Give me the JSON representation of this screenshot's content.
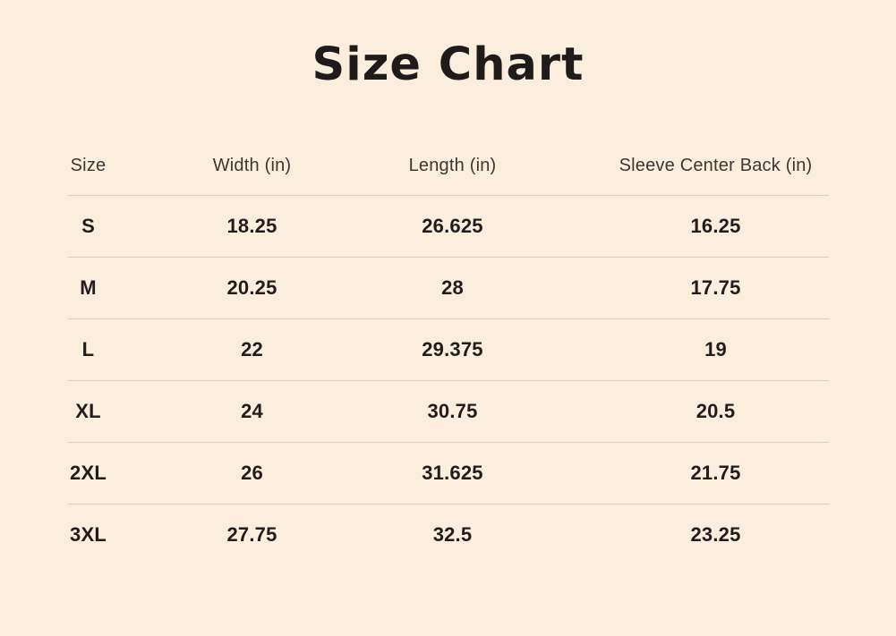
{
  "page": {
    "background_color": "#fceedd",
    "divider_color": "#d8d0c2",
    "title_color": "#1f1b1b",
    "header_text_color": "#3c3733",
    "data_text_color": "#211d1d"
  },
  "chart_data": {
    "type": "table",
    "title": "Size Chart",
    "columns": [
      "Size",
      "Width (in)",
      "Length (in)",
      "Sleeve Center Back (in)"
    ],
    "rows": [
      [
        "S",
        "18.25",
        "26.625",
        "16.25"
      ],
      [
        "M",
        "20.25",
        "28",
        "17.75"
      ],
      [
        "L",
        "22",
        "29.375",
        "19"
      ],
      [
        "XL",
        "24",
        "30.75",
        "20.5"
      ],
      [
        "2XL",
        "26",
        "31.625",
        "21.75"
      ],
      [
        "3XL",
        "27.75",
        "32.5",
        "23.25"
      ]
    ],
    "layout": {
      "grid": "horizontal dividers between rows only, no outer border",
      "legend": "none"
    }
  }
}
